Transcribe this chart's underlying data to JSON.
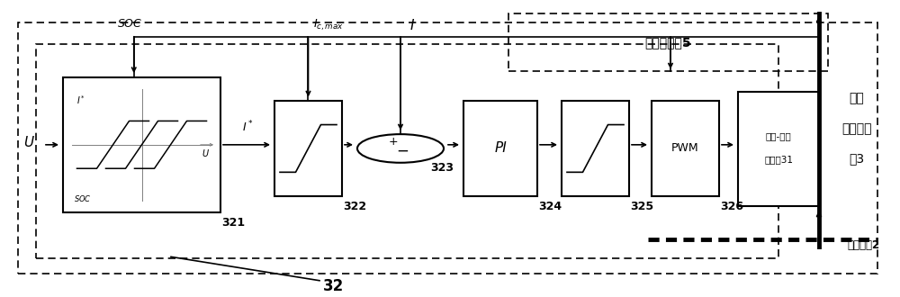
{
  "fig_width": 10.0,
  "fig_height": 3.3,
  "dpi": 100,
  "bg_color": "#ffffff",
  "storage_label": "可储能设备5",
  "right_label_1": "直流",
  "right_label_2": "充放电装",
  "right_label_3": "置3",
  "block31_line1": "直流-直流",
  "block31_line2": "变换器31",
  "label_bus": "直流母线2",
  "label_32": "32",
  "label_321": "321",
  "label_322": "322",
  "label_323": "323",
  "label_324": "324",
  "label_325": "325",
  "label_326": "326"
}
